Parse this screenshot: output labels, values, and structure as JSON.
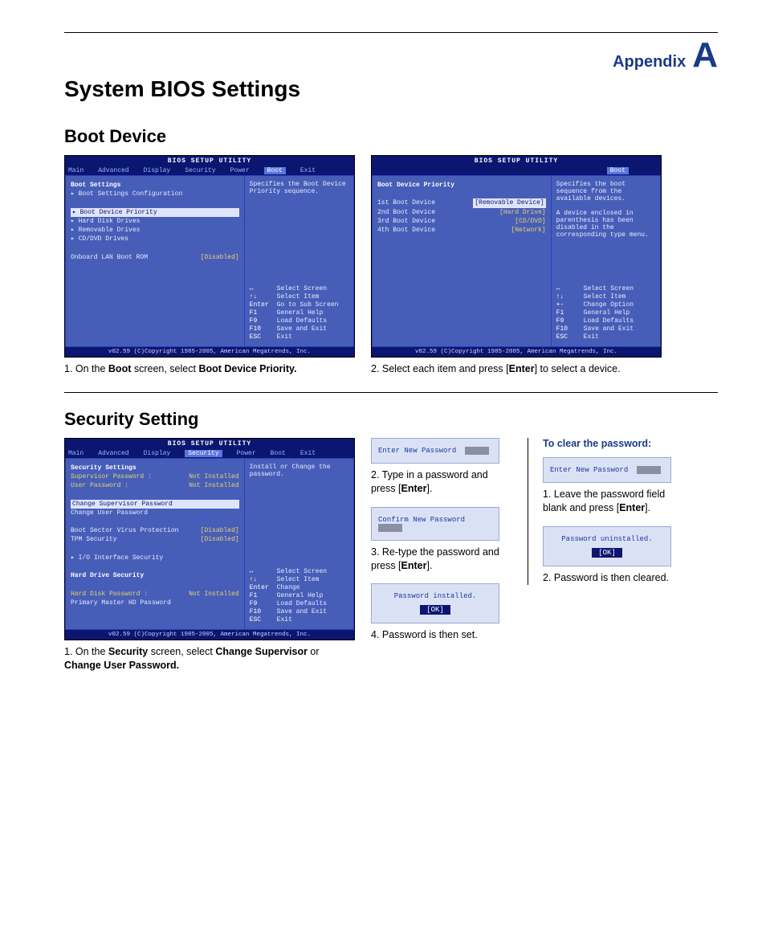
{
  "header": {
    "appendix_label": "Appendix",
    "appendix_letter": "A"
  },
  "page_title": "System BIOS Settings",
  "section_boot": "Boot Device",
  "section_security": "Security Setting",
  "bios_common": {
    "title": "BIOS SETUP UTILITY",
    "menu": [
      "Main",
      "Advanced",
      "Display",
      "Security",
      "Power",
      "Boot",
      "Exit"
    ],
    "foot": "v02.59 (C)Copyright 1985-2005, American Megatrends, Inc.",
    "keys_full": [
      {
        "k": "↔",
        "v": "Select Screen"
      },
      {
        "k": "↑↓",
        "v": "Select Item"
      },
      {
        "k": "Enter",
        "v": "Go to Sub Screen"
      },
      {
        "k": "F1",
        "v": "General Help"
      },
      {
        "k": "F9",
        "v": "Load Defaults"
      },
      {
        "k": "F10",
        "v": "Save and Exit"
      },
      {
        "k": "ESC",
        "v": "Exit"
      }
    ],
    "keys_change": [
      {
        "k": "↔",
        "v": "Select Screen"
      },
      {
        "k": "↑↓",
        "v": "Select Item"
      },
      {
        "k": "+-",
        "v": "Change Option"
      },
      {
        "k": "F1",
        "v": "General Help"
      },
      {
        "k": "F9",
        "v": "Load Defaults"
      },
      {
        "k": "F10",
        "v": "Save and Exit"
      },
      {
        "k": "ESC",
        "v": "Exit"
      }
    ],
    "keys_sec": [
      {
        "k": "↔",
        "v": "Select Screen"
      },
      {
        "k": "↑↓",
        "v": "Select Item"
      },
      {
        "k": "Enter",
        "v": "Change"
      },
      {
        "k": "F1",
        "v": "General Help"
      },
      {
        "k": "F9",
        "v": "Load Defaults"
      },
      {
        "k": "F10",
        "v": "Save and Exit"
      },
      {
        "k": "ESC",
        "v": "Exit"
      }
    ]
  },
  "boot1": {
    "help": "Specifies the Boot Device Priority sequence.",
    "heading": "Boot Settings",
    "items": [
      "▸ Boot Settings Configuration",
      "",
      "▸ Boot Device Priority",
      "▸ Hard Disk Drives",
      "▸ Removable Drives",
      "▸ CD/DVD Drives"
    ],
    "lan_row_l": "Onboard LAN Boot ROM",
    "lan_row_r": "[Disabled]",
    "caption_pre": "1. On the ",
    "caption_b1": "Boot",
    "caption_mid": " screen, select ",
    "caption_b2": "Boot Device Priority."
  },
  "boot2": {
    "help": "Specifies the boot sequence from the available devices.\n\nA device enclosed in parenthesis has been disabled in the corresponding type menu.",
    "heading": "Boot Device Priority",
    "rows": [
      {
        "l": "1st Boot Device",
        "r": "[Removable Device]",
        "sel": true
      },
      {
        "l": "2nd Boot Device",
        "r": "[Hard Drive]"
      },
      {
        "l": "3rd Boot Device",
        "r": "[CD/DVD]"
      },
      {
        "l": "4th Boot Device",
        "r": "[Network]"
      }
    ],
    "caption_pre": "2. Select each item and press [",
    "caption_b": "Enter",
    "caption_post": "] to select a device."
  },
  "sec1": {
    "help": "Install or Change the password.",
    "heading": "Security Settings",
    "rows1": [
      {
        "l": "Supervisor Password :",
        "r": "Not Installed"
      },
      {
        "l": "User Password      :",
        "r": "Not Installed"
      }
    ],
    "chg_sup": "Change Supervisor Password",
    "chg_usr": "Change User Password",
    "rows2": [
      {
        "l": "Boot Sector Virus Protection",
        "r": "[Disabled]"
      },
      {
        "l": "TPM Security",
        "r": "[Disabled]"
      }
    ],
    "io": "▸ I/O Interface Security",
    "hds": "Hard Drive Security",
    "rows3": [
      {
        "l": "Hard Disk Password :",
        "r": "Not Installed"
      }
    ],
    "pmhd": "Primary Master HD Password",
    "caption_pre": "1. On the ",
    "caption_b1": "Security",
    "caption_mid": " screen, select ",
    "caption_b2": "Change Supervisor",
    "caption_or": " or ",
    "caption_b3": "Change User Password."
  },
  "dialogs": {
    "enter_new": "Enter New Password",
    "confirm_new": "Confirm New Password",
    "installed": "Password installed.",
    "uninstalled": "Password uninstalled.",
    "ok": "[OK]"
  },
  "colB": {
    "c2_pre": "2. Type in a password and press [",
    "c2_b": "Enter",
    "c2_post": "].",
    "c3_pre": "3. Re-type the password and press [",
    "c3_b": "Enter",
    "c3_post": "].",
    "c4": "4. Password is then set."
  },
  "colC": {
    "title": "To clear the password:",
    "c1_pre": "1. Leave the password field blank and press [",
    "c1_b": "Enter",
    "c1_post": "].",
    "c2": "2. Password is then cleared."
  }
}
